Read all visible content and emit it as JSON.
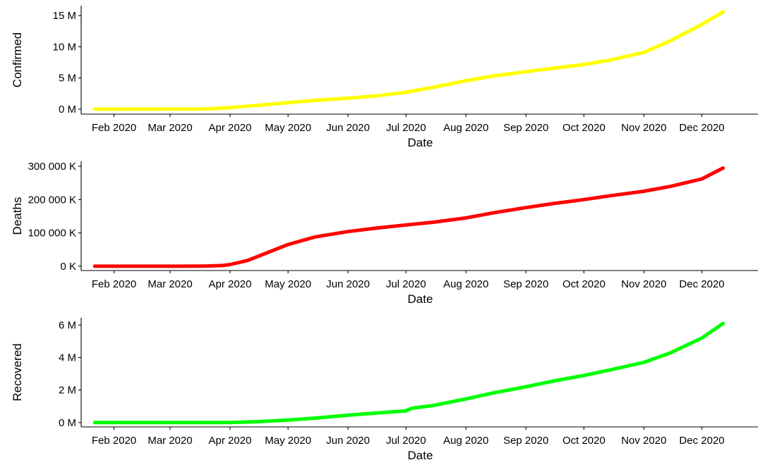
{
  "chart_data": [
    {
      "type": "line",
      "title": "",
      "xlabel": "Date",
      "ylabel": "Confirmed",
      "x_tick_labels": [
        "Feb 2020",
        "Mar 2020",
        "Apr 2020",
        "May 2020",
        "Jun 2020",
        "Jul 2020",
        "Aug 2020",
        "Sep 2020",
        "Oct 2020",
        "Nov 2020",
        "Dec 2020"
      ],
      "y_tick_labels": [
        "0 M",
        "5 M",
        "10 M",
        "15 M"
      ],
      "y_ticks": [
        0,
        5,
        10,
        15
      ],
      "ylim": [
        -0.8,
        16.6
      ],
      "xlim": [
        "2020-01-15",
        "2020-12-30"
      ],
      "grid": false,
      "color": "#FFFF00",
      "series": [
        {
          "x": [
            "2020-01-22",
            "2020-02-15",
            "2020-03-01",
            "2020-03-15",
            "2020-03-25",
            "2020-04-01",
            "2020-04-15",
            "2020-05-01",
            "2020-05-15",
            "2020-06-01",
            "2020-06-15",
            "2020-07-01",
            "2020-07-15",
            "2020-08-01",
            "2020-08-15",
            "2020-09-01",
            "2020-09-15",
            "2020-10-01",
            "2020-10-15",
            "2020-11-01",
            "2020-11-15",
            "2020-12-01",
            "2020-12-12"
          ],
          "y": [
            0.0,
            0.0,
            0.01,
            0.03,
            0.1,
            0.25,
            0.6,
            1.05,
            1.4,
            1.75,
            2.1,
            2.7,
            3.5,
            4.55,
            5.3,
            6.0,
            6.55,
            7.15,
            7.9,
            9.1,
            11.0,
            13.6,
            15.6
          ]
        }
      ]
    },
    {
      "type": "line",
      "title": "",
      "xlabel": "Date",
      "ylabel": "Deaths",
      "x_tick_labels": [
        "Feb 2020",
        "Mar 2020",
        "Apr 2020",
        "May 2020",
        "Jun 2020",
        "Jul 2020",
        "Aug 2020",
        "Sep 2020",
        "Oct 2020",
        "Nov 2020",
        "Dec 2020"
      ],
      "y_tick_labels": [
        "0 K",
        "100 000 K",
        "200 000 K",
        "300 000 K"
      ],
      "y_ticks": [
        0,
        100000,
        200000,
        300000
      ],
      "ylim": [
        -13000,
        315000
      ],
      "xlim": [
        "2020-01-15",
        "2020-12-30"
      ],
      "grid": false,
      "color": "#FF0000",
      "series": [
        {
          "x": [
            "2020-01-22",
            "2020-03-01",
            "2020-03-20",
            "2020-03-28",
            "2020-04-01",
            "2020-04-10",
            "2020-04-20",
            "2020-05-01",
            "2020-05-15",
            "2020-06-01",
            "2020-06-15",
            "2020-07-01",
            "2020-07-15",
            "2020-08-01",
            "2020-08-15",
            "2020-09-01",
            "2020-09-15",
            "2020-10-01",
            "2020-10-15",
            "2020-11-01",
            "2020-11-15",
            "2020-12-01",
            "2020-12-12"
          ],
          "y": [
            0,
            0,
            500,
            2000,
            5000,
            17000,
            40000,
            65000,
            88000,
            104000,
            114000,
            124000,
            132000,
            145000,
            160000,
            176000,
            188000,
            200000,
            212000,
            225000,
            240000,
            262000,
            295000
          ]
        }
      ]
    },
    {
      "type": "line",
      "title": "",
      "xlabel": "Date",
      "ylabel": "Recovered",
      "x_tick_labels": [
        "Feb 2020",
        "Mar 2020",
        "Apr 2020",
        "May 2020",
        "Jun 2020",
        "Jul 2020",
        "Aug 2020",
        "Sep 2020",
        "Oct 2020",
        "Nov 2020",
        "Dec 2020"
      ],
      "y_tick_labels": [
        "0 M",
        "2 M",
        "4 M",
        "6 M"
      ],
      "y_ticks": [
        0,
        2,
        4,
        6
      ],
      "ylim": [
        -0.27,
        6.45
      ],
      "xlim": [
        "2020-01-15",
        "2020-12-30"
      ],
      "grid": false,
      "color": "#00FF00",
      "series": [
        {
          "x": [
            "2020-01-22",
            "2020-03-01",
            "2020-04-01",
            "2020-04-15",
            "2020-05-01",
            "2020-05-15",
            "2020-06-01",
            "2020-06-15",
            "2020-07-01",
            "2020-07-04",
            "2020-07-15",
            "2020-08-01",
            "2020-08-15",
            "2020-09-01",
            "2020-09-15",
            "2020-10-01",
            "2020-10-15",
            "2020-11-01",
            "2020-11-15",
            "2020-12-01",
            "2020-12-12"
          ],
          "y": [
            0.0,
            0.0,
            0.0,
            0.05,
            0.15,
            0.27,
            0.45,
            0.58,
            0.72,
            0.88,
            1.05,
            1.45,
            1.82,
            2.2,
            2.55,
            2.9,
            3.25,
            3.7,
            4.3,
            5.2,
            6.1
          ]
        }
      ]
    }
  ]
}
